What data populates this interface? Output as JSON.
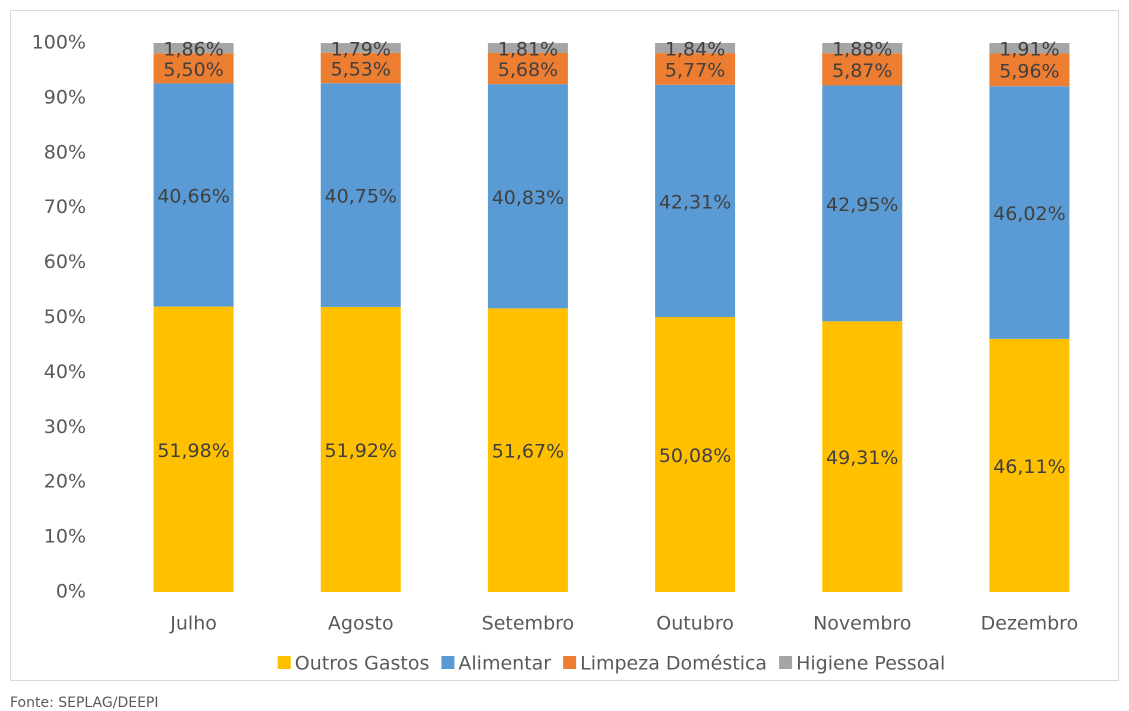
{
  "chart_data": {
    "type": "stacked_bar",
    "categories": [
      "Julho",
      "Agosto",
      "Setembro",
      "Outubro",
      "Novembro",
      "Dezembro"
    ],
    "series": [
      {
        "name": "Outros Gastos",
        "color": "#ffc000",
        "values": [
          51.98,
          51.92,
          51.67,
          50.08,
          49.31,
          46.11
        ],
        "value_labels": [
          "51,98%",
          "51,92%",
          "51,67%",
          "50,08%",
          "49,31%",
          "46,11%"
        ]
      },
      {
        "name": "Alimentar",
        "color": "#5b9bd5",
        "values": [
          40.66,
          40.75,
          40.83,
          42.31,
          42.95,
          46.02
        ],
        "value_labels": [
          "40,66%",
          "40,75%",
          "40,83%",
          "42,31%",
          "42,95%",
          "46,02%"
        ]
      },
      {
        "name": "Limpeza Doméstica",
        "color": "#ed7d31",
        "values": [
          5.5,
          5.53,
          5.68,
          5.77,
          5.87,
          5.96
        ],
        "value_labels": [
          "5,50%",
          "5,53%",
          "5,68%",
          "5,77%",
          "5,87%",
          "5,96%"
        ]
      },
      {
        "name": "Higiene Pessoal",
        "color": "#a5a5a5",
        "values": [
          1.86,
          1.79,
          1.81,
          1.84,
          1.88,
          1.91
        ],
        "value_labels": [
          "1,86%",
          "1,79%",
          "1,81%",
          "1,84%",
          "1,88%",
          "1,91%"
        ]
      }
    ],
    "ylim": [
      0,
      100
    ],
    "yticks": [
      {
        "value": 0,
        "label": "0%"
      },
      {
        "value": 10,
        "label": "10%"
      },
      {
        "value": 20,
        "label": "20%"
      },
      {
        "value": 30,
        "label": "30%"
      },
      {
        "value": 40,
        "label": "40%"
      },
      {
        "value": 50,
        "label": "50%"
      },
      {
        "value": 60,
        "label": "60%"
      },
      {
        "value": 70,
        "label": "70%"
      },
      {
        "value": 80,
        "label": "80%"
      },
      {
        "value": 90,
        "label": "90%"
      },
      {
        "value": 100,
        "label": "100%"
      }
    ],
    "legend": "bottom",
    "source": "Fonte: SEPLAG/DEEPI"
  }
}
